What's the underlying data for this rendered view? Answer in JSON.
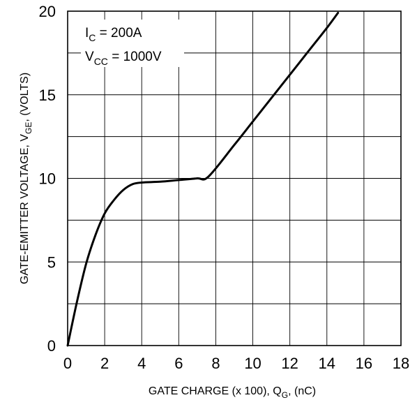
{
  "chart_data": {
    "type": "line",
    "xlabel": "GATE CHARGE (x 100), Q",
    "xlabel_sub": "G",
    "xlabel_suffix": ", (nC)",
    "ylabel": "GATE-EMITTER VOLTAGE, V",
    "ylabel_sub": "GE",
    "ylabel_suffix": ", (VOLTS)",
    "xlim": [
      0,
      18
    ],
    "ylim": [
      0,
      20
    ],
    "x_ticks": [
      0,
      2,
      4,
      6,
      8,
      10,
      12,
      14,
      16,
      18
    ],
    "y_ticks": [
      0,
      5,
      10,
      15,
      20
    ],
    "x_tick_labels": [
      "0",
      "2",
      "4",
      "6",
      "8",
      "10",
      "12",
      "14",
      "16",
      "18"
    ],
    "y_tick_labels": [
      "0",
      "5",
      "10",
      "15",
      "20"
    ],
    "grid": true,
    "grid_minor_y": 2.5,
    "annotations": [
      {
        "main": "I",
        "sub": "C",
        "rest": " = 200A"
      },
      {
        "main": "V",
        "sub": "CC",
        "rest": " = 1000V"
      }
    ],
    "series": [
      {
        "x": [
          0.0,
          0.5,
          1.0,
          1.5,
          2.0,
          2.5,
          3.0,
          3.5,
          4.0,
          5.0,
          6.0,
          7.0,
          7.6,
          9.0,
          10.0,
          11.0,
          12.0,
          13.0,
          14.0,
          14.6
        ],
        "y": [
          0.0,
          2.6,
          4.9,
          6.6,
          7.9,
          8.7,
          9.3,
          9.65,
          9.75,
          9.8,
          9.9,
          10.0,
          10.1,
          12.0,
          13.4,
          14.8,
          16.2,
          17.6,
          19.0,
          19.9
        ]
      }
    ]
  },
  "colors": {
    "line": "#000000",
    "grid": "#000000",
    "background": "#ffffff"
  }
}
